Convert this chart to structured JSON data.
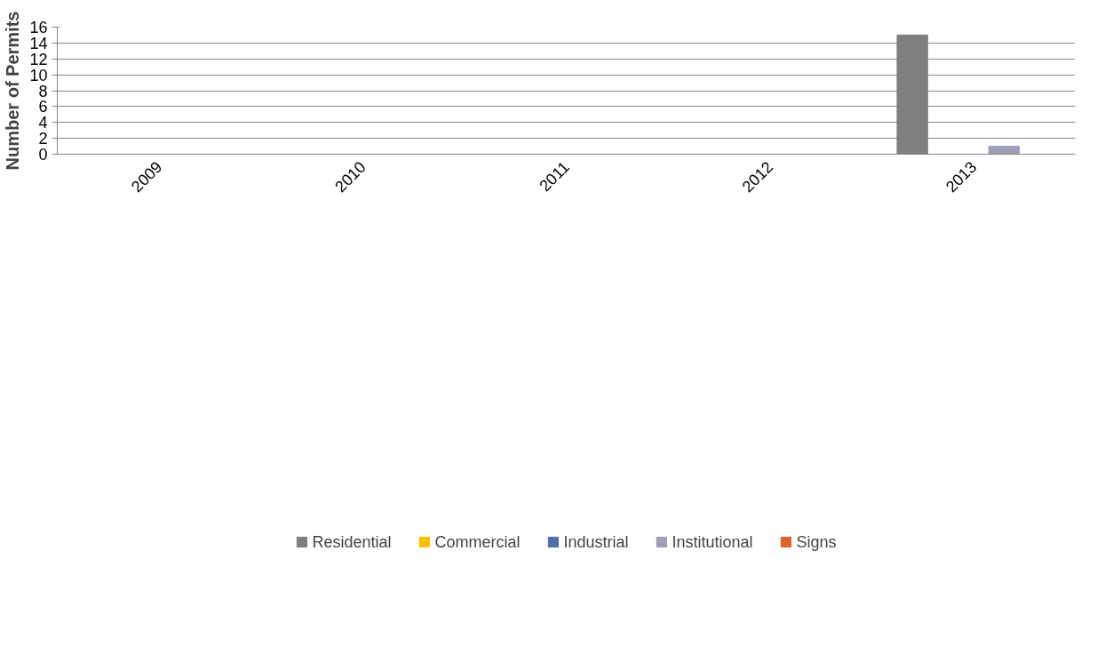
{
  "chart_data": {
    "type": "bar",
    "ylabel": "Number of Permits",
    "categories": [
      "2009",
      "2010",
      "2011",
      "2012",
      "2013"
    ],
    "series": [
      {
        "name": "Residential",
        "color": "#7f7f7f",
        "values": [
          0,
          0,
          0,
          0,
          15
        ]
      },
      {
        "name": "Commercial",
        "color": "#ffc000",
        "values": [
          0,
          0,
          0,
          0,
          0
        ]
      },
      {
        "name": "Industrial",
        "color": "#4f6fb0",
        "values": [
          0,
          0,
          0,
          0,
          0
        ]
      },
      {
        "name": "Institutional",
        "color": "#9fa0b8",
        "values": [
          0,
          0,
          0,
          0,
          1
        ]
      },
      {
        "name": "Signs",
        "color": "#e0622a",
        "values": [
          0,
          0,
          0,
          0,
          0
        ]
      }
    ],
    "ylim": [
      0,
      16
    ],
    "yticks": [
      0,
      2,
      4,
      6,
      8,
      10,
      12,
      14,
      16
    ],
    "grid": "y",
    "legend": "bottom"
  }
}
